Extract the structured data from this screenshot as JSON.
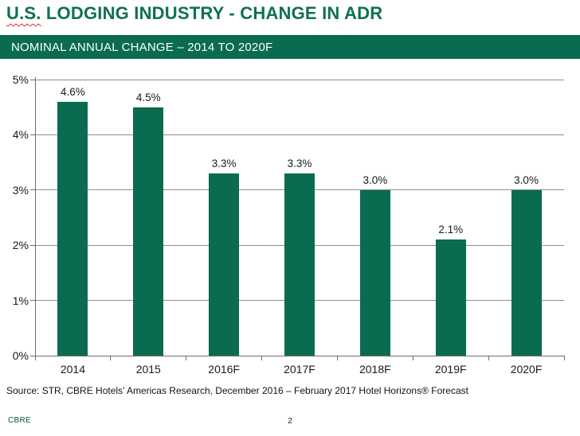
{
  "page": {
    "title_part1": "U.S.",
    "title_part2": " LODGING INDUSTRY - CHANGE IN ADR",
    "banner_text": "NOMINAL ANNUAL CHANGE – 2014 TO 2020F",
    "source_text": "Source: STR, CBRE Hotels’ Americas Research, December 2016 – February 2017 Hotel Horizons® Forecast",
    "footer_brand": "CBRE",
    "page_number": "2"
  },
  "colors": {
    "brand_green": "#0a6b50",
    "title_green": "#0e7150",
    "grid_gray": "#8f8f8f",
    "axis_gray": "#6e6e6e",
    "label_black": "#1a1a1a",
    "spellcheck_red": "#e8262a"
  },
  "chart_data": {
    "type": "bar",
    "title": "U.S. LODGING INDUSTRY - CHANGE IN ADR",
    "subtitle": "NOMINAL ANNUAL CHANGE – 2014 TO 2020F",
    "categories": [
      "2014",
      "2015",
      "2016F",
      "2017F",
      "2018F",
      "2019F",
      "2020F"
    ],
    "values": [
      4.6,
      4.5,
      3.3,
      3.3,
      3.0,
      2.1,
      3.0
    ],
    "value_labels": [
      "4.6%",
      "4.5%",
      "3.3%",
      "3.3%",
      "3.0%",
      "2.1%",
      "3.0%"
    ],
    "xlabel": "",
    "ylabel": "",
    "ylim": [
      0,
      5
    ],
    "yticks": [
      {
        "value": 0,
        "label": "0%"
      },
      {
        "value": 1,
        "label": "1%"
      },
      {
        "value": 2,
        "label": "2%"
      },
      {
        "value": 3,
        "label": "3%"
      },
      {
        "value": 4,
        "label": "4%"
      },
      {
        "value": 5,
        "label": "5%"
      }
    ],
    "grid": true,
    "legend": false,
    "bar_color": "#0a6b50"
  }
}
